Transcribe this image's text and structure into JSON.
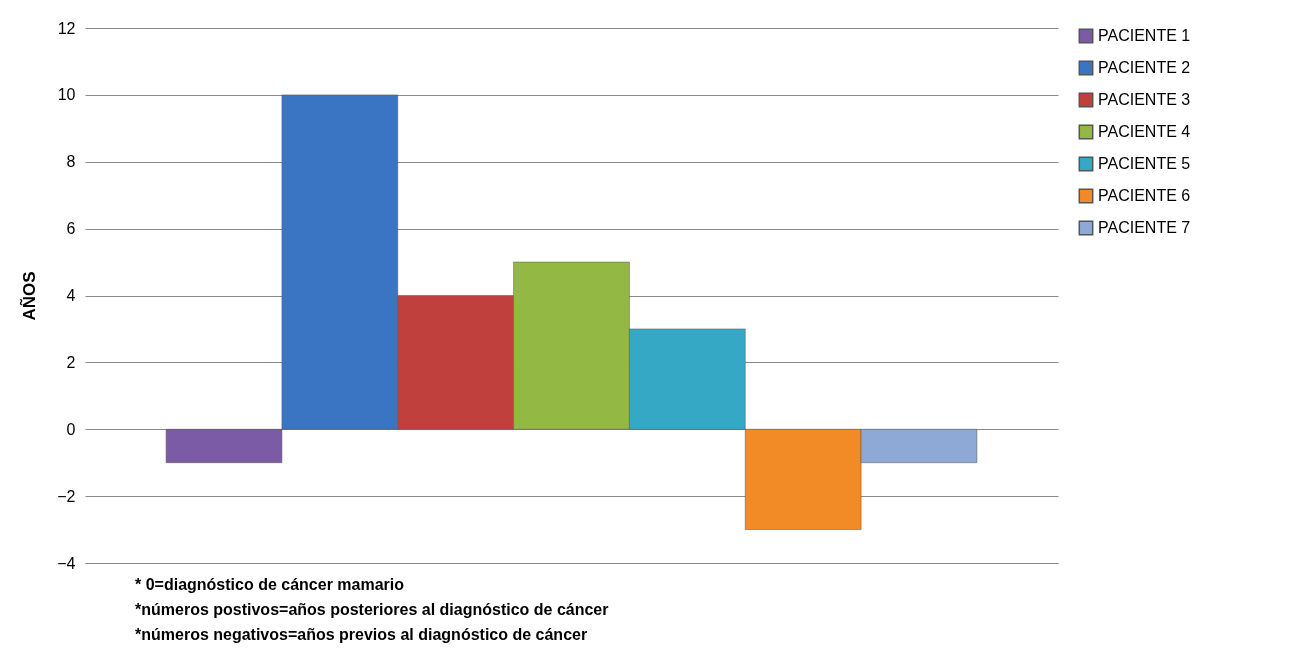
{
  "chart_data": {
    "type": "bar",
    "ylabel": "AÑOS",
    "categories": [
      null
    ],
    "series": [
      {
        "name": "PACIENTE 1",
        "color": "#7b5ba6",
        "values": [
          -1
        ]
      },
      {
        "name": "PACIENTE 2",
        "color": "#3a75c4",
        "values": [
          10
        ]
      },
      {
        "name": "PACIENTE 3",
        "color": "#c0403e",
        "values": [
          4
        ]
      },
      {
        "name": "PACIENTE 4",
        "color": "#93b944",
        "values": [
          5
        ]
      },
      {
        "name": "PACIENTE 5",
        "color": "#35a8c6",
        "values": [
          3
        ]
      },
      {
        "name": "PACIENTE 6",
        "color": "#f28a25",
        "values": [
          -3
        ]
      },
      {
        "name": "PACIENTE 7",
        "color": "#8fa9d6",
        "values": [
          -1
        ]
      }
    ],
    "ylim": [
      -4,
      12
    ],
    "yticks": [
      -4,
      -2,
      0,
      2,
      4,
      6,
      8,
      10,
      12
    ],
    "grid": "y",
    "legend": "right",
    "annotations": [
      "* 0=diagnóstico de cáncer mamario",
      "*números postivos=años posteriores al diagnóstico de cáncer",
      "*números negativos=años previos al diagnóstico de cáncer"
    ]
  }
}
